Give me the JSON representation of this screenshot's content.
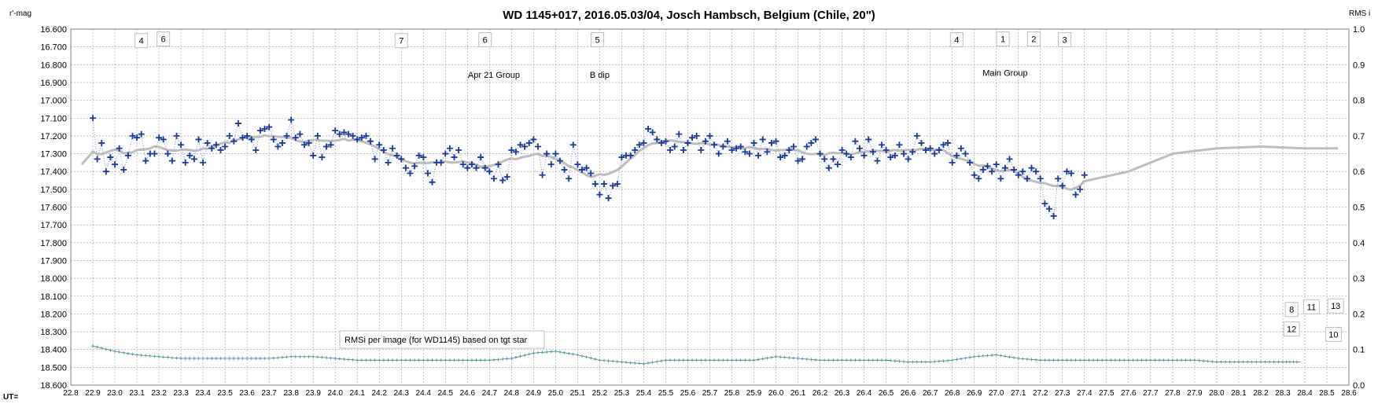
{
  "chart_data": {
    "type": "scatter",
    "title": "WD 1145+017,  2016.05.03/04,  Josch  Hambsch,  Belgium  (Chile, 20\")",
    "ylabel": "r'-mag",
    "y2label": "RMS i",
    "xlabel": "UT=",
    "xlim": [
      22.8,
      28.6
    ],
    "ylim": [
      16.6,
      18.6
    ],
    "y_inverted": true,
    "y2lim": [
      0.0,
      1.0
    ],
    "grid": true,
    "x_ticks": [
      "22.8",
      "22.9",
      "23.0",
      "23.1",
      "23.2",
      "23.3",
      "23.4",
      "23.5",
      "23.6",
      "23.7",
      "23.8",
      "23.9",
      "24.0",
      "24.1",
      "24.2",
      "24.3",
      "24.4",
      "24.5",
      "24.6",
      "24.7",
      "24.8",
      "24.9",
      "25.0",
      "25.1",
      "25.2",
      "25.3",
      "25.4",
      "25.5",
      "25.6",
      "25.7",
      "25.8",
      "25.9",
      "26.0",
      "26.1",
      "26.2",
      "26.3",
      "26.4",
      "26.5",
      "26.6",
      "26.7",
      "26.8",
      "26.9",
      "27.0",
      "27.1",
      "27.2",
      "27.3",
      "27.4",
      "27.5",
      "27.6",
      "27.7",
      "27.8",
      "27.9",
      "28.0",
      "28.1",
      "28.2",
      "28.3",
      "28.4",
      "28.5",
      "28.6"
    ],
    "y_ticks": [
      "16.600",
      "16.700",
      "16.800",
      "16.900",
      "17.000",
      "17.100",
      "17.200",
      "17.300",
      "17.400",
      "17.500",
      "17.600",
      "17.700",
      "17.800",
      "17.900",
      "18.000",
      "18.100",
      "18.200",
      "18.300",
      "18.400",
      "18.500",
      "18.600"
    ],
    "y2_ticks": [
      "1.0",
      "0.9",
      "0.8",
      "0.7",
      "0.6",
      "0.5",
      "0.4",
      "0.3",
      "0.2",
      "0.1",
      "0.0"
    ],
    "magnitude_curve": [
      [
        22.9,
        17.1
      ],
      [
        22.92,
        17.33
      ],
      [
        22.94,
        17.24
      ],
      [
        22.96,
        17.4
      ],
      [
        22.98,
        17.32
      ],
      [
        23.0,
        17.36
      ],
      [
        23.02,
        17.27
      ],
      [
        23.04,
        17.39
      ],
      [
        23.06,
        17.31
      ],
      [
        23.08,
        17.2
      ],
      [
        23.1,
        17.21
      ],
      [
        23.12,
        17.19
      ],
      [
        23.14,
        17.34
      ],
      [
        23.16,
        17.3
      ],
      [
        23.18,
        17.3
      ],
      [
        23.2,
        17.21
      ],
      [
        23.22,
        17.22
      ],
      [
        23.24,
        17.3
      ],
      [
        23.26,
        17.34
      ],
      [
        23.28,
        17.2
      ],
      [
        23.3,
        17.25
      ],
      [
        23.32,
        17.35
      ],
      [
        23.34,
        17.31
      ],
      [
        23.36,
        17.33
      ],
      [
        23.38,
        17.22
      ],
      [
        23.4,
        17.35
      ],
      [
        23.42,
        17.24
      ],
      [
        23.44,
        17.27
      ],
      [
        23.46,
        17.25
      ],
      [
        23.48,
        17.28
      ],
      [
        23.5,
        17.26
      ],
      [
        23.52,
        17.2
      ],
      [
        23.54,
        17.23
      ],
      [
        23.56,
        17.13
      ],
      [
        23.58,
        17.21
      ],
      [
        23.6,
        17.2
      ],
      [
        23.62,
        17.22
      ],
      [
        23.64,
        17.28
      ],
      [
        23.66,
        17.17
      ],
      [
        23.68,
        17.16
      ],
      [
        23.7,
        17.15
      ],
      [
        23.72,
        17.22
      ],
      [
        23.74,
        17.26
      ],
      [
        23.76,
        17.24
      ],
      [
        23.78,
        17.2
      ],
      [
        23.8,
        17.11
      ],
      [
        23.82,
        17.21
      ],
      [
        23.84,
        17.19
      ],
      [
        23.86,
        17.25
      ],
      [
        23.88,
        17.24
      ],
      [
        23.9,
        17.31
      ],
      [
        23.92,
        17.2
      ],
      [
        23.94,
        17.32
      ],
      [
        23.96,
        17.26
      ],
      [
        23.98,
        17.25
      ],
      [
        24.0,
        17.17
      ],
      [
        24.02,
        17.19
      ],
      [
        24.04,
        17.18
      ],
      [
        24.06,
        17.19
      ],
      [
        24.08,
        17.2
      ],
      [
        24.1,
        17.22
      ],
      [
        24.12,
        17.21
      ],
      [
        24.14,
        17.2
      ],
      [
        24.16,
        17.23
      ],
      [
        24.18,
        17.33
      ],
      [
        24.2,
        17.25
      ],
      [
        24.22,
        17.28
      ],
      [
        24.24,
        17.35
      ],
      [
        24.26,
        17.27
      ],
      [
        24.28,
        17.31
      ],
      [
        24.3,
        17.33
      ],
      [
        24.32,
        17.38
      ],
      [
        24.34,
        17.41
      ],
      [
        24.36,
        17.37
      ],
      [
        24.38,
        17.31
      ],
      [
        24.4,
        17.32
      ],
      [
        24.42,
        17.41
      ],
      [
        24.44,
        17.46
      ],
      [
        24.46,
        17.35
      ],
      [
        24.48,
        17.35
      ],
      [
        24.5,
        17.3
      ],
      [
        24.52,
        17.27
      ],
      [
        24.54,
        17.32
      ],
      [
        24.56,
        17.28
      ],
      [
        24.58,
        17.36
      ],
      [
        24.6,
        17.38
      ],
      [
        24.62,
        17.36
      ],
      [
        24.64,
        17.38
      ],
      [
        24.66,
        17.32
      ],
      [
        24.68,
        17.38
      ],
      [
        24.7,
        17.4
      ],
      [
        24.72,
        17.44
      ],
      [
        24.74,
        17.36
      ],
      [
        24.76,
        17.45
      ],
      [
        24.78,
        17.43
      ],
      [
        24.8,
        17.28
      ],
      [
        24.82,
        17.29
      ],
      [
        24.84,
        17.25
      ],
      [
        24.86,
        17.26
      ],
      [
        24.88,
        17.24
      ],
      [
        24.9,
        17.22
      ],
      [
        24.92,
        17.26
      ],
      [
        24.94,
        17.42
      ],
      [
        24.96,
        17.3
      ],
      [
        24.98,
        17.36
      ],
      [
        25.0,
        17.3
      ],
      [
        25.02,
        17.34
      ],
      [
        25.04,
        17.39
      ],
      [
        25.06,
        17.44
      ],
      [
        25.08,
        17.25
      ],
      [
        25.1,
        17.36
      ],
      [
        25.12,
        17.39
      ],
      [
        25.14,
        17.38
      ],
      [
        25.16,
        17.41
      ],
      [
        25.18,
        17.47
      ],
      [
        25.2,
        17.53
      ],
      [
        25.22,
        17.47
      ],
      [
        25.24,
        17.55
      ],
      [
        25.26,
        17.48
      ],
      [
        25.28,
        17.47
      ],
      [
        25.3,
        17.32
      ],
      [
        25.32,
        17.31
      ],
      [
        25.34,
        17.31
      ],
      [
        25.36,
        17.28
      ],
      [
        25.38,
        17.25
      ],
      [
        25.4,
        17.24
      ],
      [
        25.42,
        17.16
      ],
      [
        25.44,
        17.18
      ],
      [
        25.46,
        17.22
      ],
      [
        25.48,
        17.24
      ],
      [
        25.5,
        17.23
      ],
      [
        25.52,
        17.28
      ],
      [
        25.54,
        17.26
      ],
      [
        25.56,
        17.19
      ],
      [
        25.58,
        17.28
      ],
      [
        25.6,
        17.24
      ],
      [
        25.62,
        17.21
      ],
      [
        25.64,
        17.2
      ],
      [
        25.66,
        17.28
      ],
      [
        25.68,
        17.23
      ],
      [
        25.7,
        17.2
      ],
      [
        25.72,
        17.25
      ],
      [
        25.74,
        17.3
      ],
      [
        25.76,
        17.26
      ],
      [
        25.78,
        17.23
      ],
      [
        25.8,
        17.28
      ],
      [
        25.82,
        17.27
      ],
      [
        25.84,
        17.26
      ],
      [
        25.86,
        17.29
      ],
      [
        25.88,
        17.3
      ],
      [
        25.9,
        17.24
      ],
      [
        25.92,
        17.31
      ],
      [
        25.94,
        17.22
      ],
      [
        25.96,
        17.29
      ],
      [
        25.98,
        17.24
      ],
      [
        26.0,
        17.23
      ],
      [
        26.02,
        17.32
      ],
      [
        26.04,
        17.31
      ],
      [
        26.06,
        17.28
      ],
      [
        26.08,
        17.26
      ],
      [
        26.1,
        17.34
      ],
      [
        26.12,
        17.33
      ],
      [
        26.14,
        17.26
      ],
      [
        26.16,
        17.24
      ],
      [
        26.18,
        17.22
      ],
      [
        26.2,
        17.3
      ],
      [
        26.22,
        17.33
      ],
      [
        26.24,
        17.38
      ],
      [
        26.26,
        17.33
      ],
      [
        26.28,
        17.36
      ],
      [
        26.3,
        17.28
      ],
      [
        26.32,
        17.3
      ],
      [
        26.34,
        17.32
      ],
      [
        26.36,
        17.23
      ],
      [
        26.38,
        17.27
      ],
      [
        26.4,
        17.31
      ],
      [
        26.42,
        17.22
      ],
      [
        26.44,
        17.29
      ],
      [
        26.46,
        17.34
      ],
      [
        26.48,
        17.25
      ],
      [
        26.5,
        17.28
      ],
      [
        26.52,
        17.32
      ],
      [
        26.54,
        17.31
      ],
      [
        26.56,
        17.25
      ],
      [
        26.58,
        17.3
      ],
      [
        26.6,
        17.33
      ],
      [
        26.62,
        17.29
      ],
      [
        26.64,
        17.2
      ],
      [
        26.66,
        17.24
      ],
      [
        26.68,
        17.28
      ],
      [
        26.7,
        17.27
      ],
      [
        26.72,
        17.3
      ],
      [
        26.74,
        17.28
      ],
      [
        26.76,
        17.25
      ],
      [
        26.78,
        17.24
      ],
      [
        26.8,
        17.35
      ],
      [
        26.82,
        17.31
      ],
      [
        26.84,
        17.27
      ],
      [
        26.86,
        17.3
      ],
      [
        26.88,
        17.35
      ],
      [
        26.9,
        17.42
      ],
      [
        26.92,
        17.44
      ],
      [
        26.94,
        17.39
      ],
      [
        26.96,
        17.37
      ],
      [
        26.98,
        17.4
      ],
      [
        27.0,
        17.36
      ],
      [
        27.02,
        17.44
      ],
      [
        27.04,
        17.38
      ],
      [
        27.06,
        17.33
      ],
      [
        27.08,
        17.39
      ],
      [
        27.1,
        17.42
      ],
      [
        27.12,
        17.4
      ],
      [
        27.14,
        17.44
      ],
      [
        27.16,
        17.38
      ],
      [
        27.18,
        17.4
      ],
      [
        27.2,
        17.44
      ],
      [
        27.22,
        17.58
      ],
      [
        27.24,
        17.61
      ],
      [
        27.26,
        17.65
      ],
      [
        27.28,
        17.44
      ],
      [
        27.3,
        17.48
      ],
      [
        27.32,
        17.4
      ],
      [
        27.34,
        17.41
      ],
      [
        27.36,
        17.53
      ],
      [
        27.38,
        17.5
      ],
      [
        27.4,
        17.42
      ]
    ],
    "rms_curve_note": "",
    "rms_points": [
      [
        22.9,
        0.11
      ],
      [
        23.0,
        0.095
      ],
      [
        23.1,
        0.085
      ],
      [
        23.2,
        0.08
      ],
      [
        23.3,
        0.075
      ],
      [
        23.4,
        0.075
      ],
      [
        23.5,
        0.075
      ],
      [
        23.6,
        0.075
      ],
      [
        23.7,
        0.075
      ],
      [
        23.8,
        0.08
      ],
      [
        23.9,
        0.08
      ],
      [
        24.0,
        0.075
      ],
      [
        24.1,
        0.07
      ],
      [
        24.2,
        0.07
      ],
      [
        24.3,
        0.07
      ],
      [
        24.4,
        0.07
      ],
      [
        24.5,
        0.07
      ],
      [
        24.6,
        0.07
      ],
      [
        24.7,
        0.07
      ],
      [
        24.8,
        0.075
      ],
      [
        24.9,
        0.09
      ],
      [
        25.0,
        0.095
      ],
      [
        25.1,
        0.085
      ],
      [
        25.2,
        0.07
      ],
      [
        25.3,
        0.065
      ],
      [
        25.4,
        0.06
      ],
      [
        25.5,
        0.07
      ],
      [
        25.6,
        0.07
      ],
      [
        25.7,
        0.07
      ],
      [
        25.8,
        0.07
      ],
      [
        25.9,
        0.07
      ],
      [
        26.0,
        0.08
      ],
      [
        26.1,
        0.075
      ],
      [
        26.2,
        0.07
      ],
      [
        26.3,
        0.07
      ],
      [
        26.4,
        0.07
      ],
      [
        26.5,
        0.07
      ],
      [
        26.6,
        0.065
      ],
      [
        26.7,
        0.065
      ],
      [
        26.8,
        0.07
      ],
      [
        26.9,
        0.08
      ],
      [
        27.0,
        0.085
      ],
      [
        27.1,
        0.075
      ],
      [
        27.2,
        0.07
      ],
      [
        27.3,
        0.07
      ],
      [
        27.4,
        0.07
      ],
      [
        27.5,
        0.07
      ],
      [
        27.6,
        0.07
      ],
      [
        27.7,
        0.07
      ],
      [
        27.8,
        0.07
      ],
      [
        27.9,
        0.07
      ],
      [
        28.0,
        0.065
      ],
      [
        28.1,
        0.065
      ],
      [
        28.2,
        0.065
      ],
      [
        28.3,
        0.065
      ],
      [
        28.38,
        0.065
      ]
    ],
    "series": [
      {
        "name": "RMSi per image (for WD1145) based on tgt star"
      }
    ],
    "annotations": [
      {
        "text": "4",
        "x": 23.12,
        "y": 16.665,
        "boxed": true
      },
      {
        "text": "6",
        "x": 23.22,
        "y": 16.655,
        "boxed": true
      },
      {
        "text": "7",
        "x": 24.3,
        "y": 16.665,
        "boxed": true
      },
      {
        "text": "6",
        "x": 24.68,
        "y": 16.66,
        "boxed": true
      },
      {
        "text": "5",
        "x": 25.19,
        "y": 16.66,
        "boxed": true
      },
      {
        "text": "Apr 21 Group",
        "x": 24.72,
        "y": 16.855,
        "boxed": false
      },
      {
        "text": "B dip",
        "x": 25.2,
        "y": 16.855,
        "boxed": false
      },
      {
        "text": "4",
        "x": 26.82,
        "y": 16.66,
        "boxed": true
      },
      {
        "text": "1",
        "x": 27.03,
        "y": 16.655,
        "boxed": true
      },
      {
        "text": "2",
        "x": 27.17,
        "y": 16.655,
        "boxed": true
      },
      {
        "text": "3",
        "x": 27.31,
        "y": 16.66,
        "boxed": true
      },
      {
        "text": "Main Group",
        "x": 27.04,
        "y": 16.845,
        "boxed": false
      },
      {
        "text": "8",
        "x": 28.34,
        "y": 18.175,
        "boxed": true
      },
      {
        "text": "11",
        "x": 28.43,
        "y": 18.16,
        "boxed": true
      },
      {
        "text": "13",
        "x": 28.54,
        "y": 18.155,
        "boxed": true
      },
      {
        "text": "12",
        "x": 28.34,
        "y": 18.285,
        "boxed": true
      },
      {
        "text": "10",
        "x": 28.53,
        "y": 18.315,
        "boxed": true
      }
    ],
    "colors": {
      "points": "#1a3a9a",
      "dotted_line": "#5b7fd0",
      "trend": "#bdbdbd",
      "rms": "#4a8a9a",
      "grid": "#9a9a9a"
    }
  }
}
